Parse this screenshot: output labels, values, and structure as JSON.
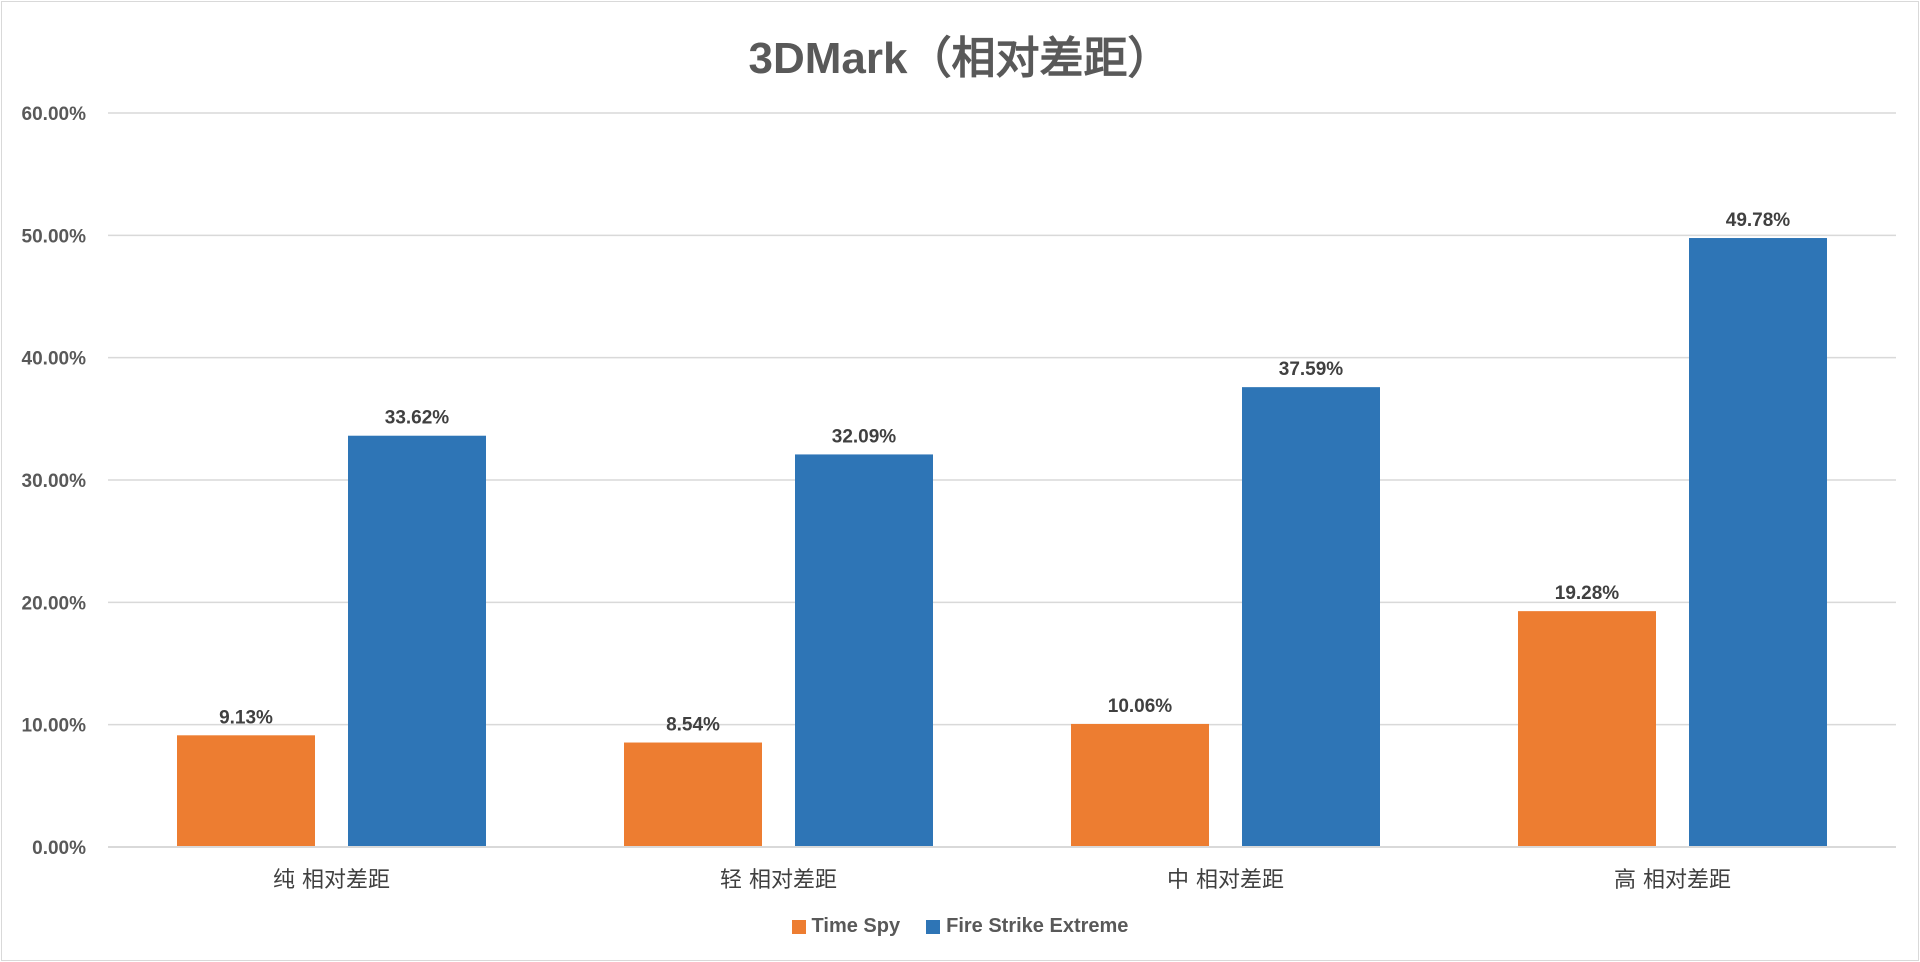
{
  "chart_data": {
    "type": "bar",
    "title": "3DMark（相对差距）",
    "categories": [
      "纯 相对差距",
      "轻 相对差距",
      "中 相对差距",
      "高 相对差距"
    ],
    "series": [
      {
        "name": "Time Spy",
        "color": "#ed7d31",
        "values": [
          9.13,
          8.54,
          10.06,
          19.28
        ],
        "labels": [
          "9.13%",
          "8.54%",
          "10.06%",
          "19.28%"
        ]
      },
      {
        "name": "Fire Strike Extreme",
        "color": "#2e75b6",
        "values": [
          33.62,
          32.09,
          37.59,
          49.78
        ],
        "labels": [
          "33.62%",
          "32.09%",
          "37.59%",
          "49.78%"
        ]
      }
    ],
    "ylim": [
      0,
      60
    ],
    "yticks": [
      "0.00%",
      "10.00%",
      "20.00%",
      "30.00%",
      "40.00%",
      "50.00%",
      "60.00%"
    ],
    "grid": true,
    "legend": "bottom",
    "xlabel": "",
    "ylabel": ""
  }
}
